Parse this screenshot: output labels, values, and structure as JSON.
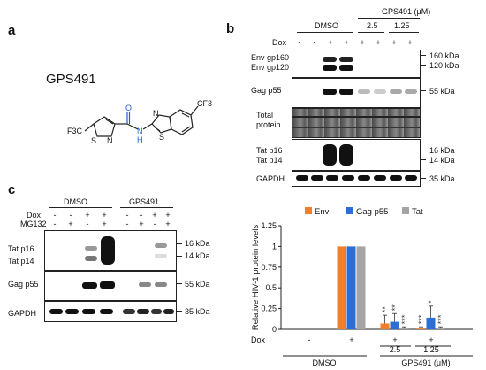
{
  "panel_a": {
    "letter": "a",
    "compound_name": "GPS491",
    "atoms": {
      "cf3_right": "CF3",
      "cf3_left": "F3C",
      "s_left": "S",
      "n_left": "N",
      "o": "O",
      "nh_n": "N",
      "nh_h": "H",
      "s_right": "S",
      "n_right": "N"
    }
  },
  "panel_b": {
    "letter": "b",
    "header": {
      "dmso": "DMSO",
      "gps": "GPS491 (μM)",
      "c25": "2.5",
      "c125": "1.25"
    },
    "dox_label": "Dox",
    "dox_marks": [
      "-",
      "-",
      "+",
      "+",
      "+",
      "+",
      "+",
      "+"
    ],
    "rows": [
      {
        "labels": [
          "Env gp160",
          "Env gp120"
        ],
        "kda": [
          "160 kDa",
          "120 kDa"
        ]
      },
      {
        "labels": [
          "Gag p55"
        ],
        "kda": [
          "55 kDa"
        ]
      },
      {
        "labels": [
          "Total",
          "protein"
        ],
        "kda": []
      },
      {
        "labels": [
          "Tat p16",
          "Tat p14"
        ],
        "kda": [
          "16 kDa",
          "14 kDa"
        ]
      },
      {
        "labels": [
          "GAPDH"
        ],
        "kda": [
          "35 kDa"
        ]
      }
    ]
  },
  "panel_c": {
    "letter": "c",
    "header": {
      "dmso": "DMSO",
      "gps": "GPS491"
    },
    "dox_label": "Dox",
    "mg_label": "MG132",
    "dox_marks": [
      "-",
      "-",
      "+",
      "+",
      "-",
      "-",
      "+",
      "+"
    ],
    "mg_marks": [
      "-",
      "+",
      "-",
      "+",
      "-",
      "+",
      "-",
      "+"
    ],
    "rows": [
      {
        "labels": [
          "Tat p16",
          "Tat p14"
        ],
        "kda": [
          "16 kDa",
          "14 kDa"
        ]
      },
      {
        "labels": [
          "Gag p55"
        ],
        "kda": [
          "55 kDa"
        ]
      },
      {
        "labels": [
          "GAPDH"
        ],
        "kda": [
          "35 kDa"
        ]
      }
    ]
  },
  "chart_data": {
    "type": "bar",
    "ylabel": "Relative HIV-1 protein levels",
    "ylim": [
      0,
      1.25
    ],
    "yticks": [
      "0",
      "0.25",
      "0.5",
      "0.75",
      "1",
      "1.25"
    ],
    "legend_placement": "top",
    "colors": {
      "Env": "#f07f2b",
      "Gag p55": "#2b6fd6",
      "Tat": "#a5a5a5"
    },
    "groups": [
      "DMSO -Dox",
      "DMSO +Dox",
      "GPS491 2.5",
      "GPS491 1.25"
    ],
    "series": [
      {
        "name": "Env",
        "values": [
          0,
          1.0,
          0.07,
          0.01
        ],
        "errors": [
          0,
          0,
          0.1,
          0.02
        ]
      },
      {
        "name": "Gag p55",
        "values": [
          0,
          1.0,
          0.09,
          0.14
        ],
        "errors": [
          0,
          0,
          0.1,
          0.14
        ]
      },
      {
        "name": "Tat",
        "values": [
          0,
          1.0,
          0.01,
          0.01
        ],
        "errors": [
          0,
          0,
          0.02,
          0.02
        ]
      }
    ],
    "significance": [
      {
        "group": 2,
        "series": 0,
        "label": "**"
      },
      {
        "group": 2,
        "series": 1,
        "label": "**"
      },
      {
        "group": 2,
        "series": 2,
        "label": "***"
      },
      {
        "group": 3,
        "series": 0,
        "label": "***"
      },
      {
        "group": 3,
        "series": 1,
        "label": "*"
      },
      {
        "group": 3,
        "series": 2,
        "label": "***"
      }
    ],
    "x_axis": {
      "dox_label": "Dox",
      "dox_marks": [
        "-",
        "+",
        "+",
        "+"
      ],
      "sub_labels": [
        "",
        "",
        "2.5",
        "1.25"
      ],
      "dmso_label": "DMSO",
      "gps_label": "GPS491 (μM)"
    }
  }
}
